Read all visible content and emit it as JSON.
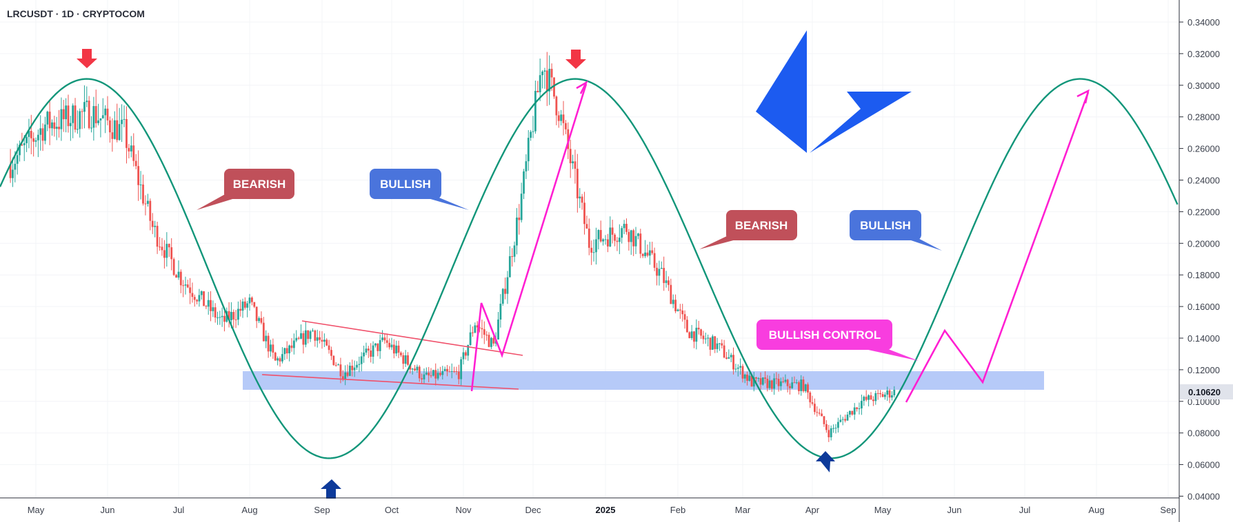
{
  "header": {
    "symbol_title": "LRCUSDT · 1D · CRYPTOCOM"
  },
  "colors": {
    "bull_candle": "#26a69a",
    "bear_candle": "#ef5350",
    "wave": "#12967a",
    "support_zone": "#a9c1f7",
    "pink": "#ff1fd2",
    "bearish_label": "#c0505a",
    "bullish_label": "#4a74dc",
    "bullish_control_label": "#f83ddf",
    "arrow_red": "#f23645",
    "arrow_blue": "#0d3a9a",
    "logo_blue": "#1c5bf0",
    "price_tag": "#e0e3eb"
  },
  "annotations": {
    "bearish_1": "BEARISH",
    "bullish_1": "BULLISH",
    "bearish_2": "BEARISH",
    "bullish_2": "BULLISH",
    "bullish_control": "BULLISH CONTROL"
  },
  "chart_data": {
    "type": "candlestick",
    "symbol": "LRCUSDT",
    "interval": "1D",
    "exchange": "CRYPTOCOM",
    "last_price": "0.10620",
    "x_tick_labels": [
      "May",
      "Jun",
      "Jul",
      "Aug",
      "Sep",
      "Oct",
      "Nov",
      "Dec",
      "2025",
      "Feb",
      "Mar",
      "Apr",
      "May",
      "Jun",
      "Jul",
      "Aug",
      "Sep"
    ],
    "y_tick_labels": [
      "0.34000",
      "0.32000",
      "0.30000",
      "0.28000",
      "0.26000",
      "0.24000",
      "0.22000",
      "0.20000",
      "0.18000",
      "0.16000",
      "0.14000",
      "0.12000",
      "0.10000",
      "0.08000",
      "0.06000",
      "0.04000"
    ],
    "ylim": [
      0.04,
      0.34
    ],
    "support_zone": [
      0.106,
      0.118
    ],
    "price_path": [
      [
        "2024-04-20",
        0.25
      ],
      [
        "2024-05-05",
        0.275
      ],
      [
        "2024-05-25",
        0.283
      ],
      [
        "2024-06-08",
        0.27
      ],
      [
        "2024-06-20",
        0.21
      ],
      [
        "2024-07-02",
        0.178
      ],
      [
        "2024-07-20",
        0.15
      ],
      [
        "2024-08-01",
        0.162
      ],
      [
        "2024-08-12",
        0.125
      ],
      [
        "2024-08-28",
        0.145
      ],
      [
        "2024-09-10",
        0.118
      ],
      [
        "2024-09-28",
        0.138
      ],
      [
        "2024-10-15",
        0.115
      ],
      [
        "2024-10-30",
        0.118
      ],
      [
        "2024-11-06",
        0.15
      ],
      [
        "2024-11-14",
        0.135
      ],
      [
        "2024-11-25",
        0.22
      ],
      [
        "2024-12-05",
        0.315
      ],
      [
        "2024-12-12",
        0.285
      ],
      [
        "2024-12-25",
        0.2
      ],
      [
        "2025-01-10",
        0.21
      ],
      [
        "2025-01-25",
        0.18
      ],
      [
        "2025-02-05",
        0.145
      ],
      [
        "2025-02-18",
        0.135
      ],
      [
        "2025-03-05",
        0.112
      ],
      [
        "2025-03-28",
        0.11
      ],
      [
        "2025-04-08",
        0.08
      ],
      [
        "2025-04-22",
        0.1
      ],
      [
        "2025-05-06",
        0.106
      ]
    ],
    "trendlines": [
      {
        "name": "wedge-upper",
        "from": [
          "2024-08-28",
          0.151
        ],
        "to": [
          "2024-11-25",
          0.129
        ]
      },
      {
        "name": "wedge-lower",
        "from": [
          "2024-08-04",
          0.116
        ],
        "to": [
          "2024-11-28",
          0.107
        ]
      }
    ],
    "sine_wave": {
      "peak": 0.304,
      "trough": 0.064,
      "peaks": [
        "2024-05-23",
        "2024-12-19",
        "2025-07-25"
      ],
      "troughs": [
        "2024-09-04",
        "2025-04-09"
      ]
    },
    "projection_path": [
      [
        "2025-05-08",
        0.099
      ],
      [
        "2025-05-31",
        0.144
      ],
      [
        "2025-06-15",
        0.112
      ],
      [
        "2025-07-24",
        0.296
      ]
    ],
    "breakout_path": [
      [
        "2024-11-04",
        0.111
      ],
      [
        "2024-11-10",
        0.162
      ],
      [
        "2024-11-18",
        0.129
      ],
      [
        "2024-12-20",
        0.302
      ]
    ]
  }
}
